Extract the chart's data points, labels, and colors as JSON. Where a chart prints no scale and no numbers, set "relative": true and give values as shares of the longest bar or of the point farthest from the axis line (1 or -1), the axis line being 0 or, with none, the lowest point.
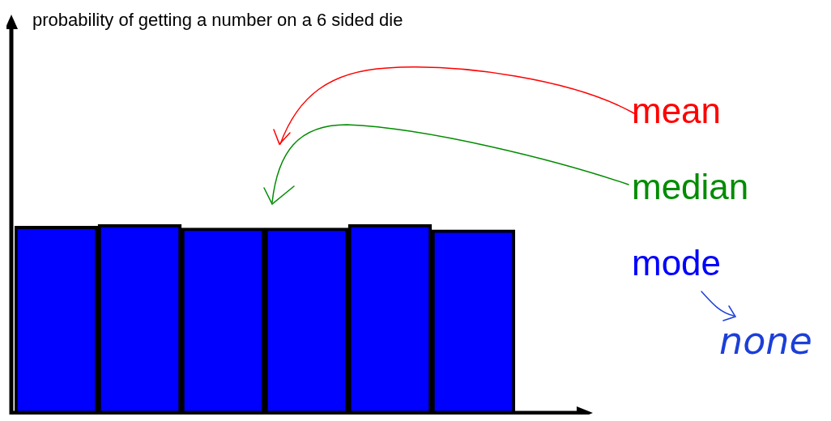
{
  "chart_data": {
    "type": "bar",
    "title": "probability of getting a number on a 6 sided die",
    "categories": [
      null,
      null,
      null,
      null,
      null,
      null
    ],
    "values": [
      0.99,
      1,
      0.98,
      0.98,
      1,
      0.97
    ],
    "color": "#0000ff",
    "relative": true,
    "annotations": [
      "mean",
      "median",
      "mode",
      "none"
    ]
  }
}
